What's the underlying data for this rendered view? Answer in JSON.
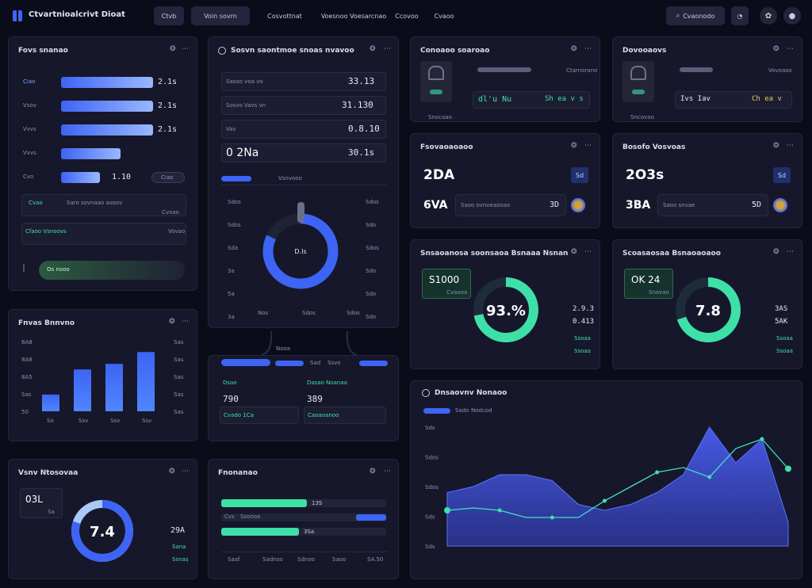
{
  "header": {
    "title": "Ctvartnioalcrivt Dioat",
    "nav": [
      "Ctvb",
      "Voin sovrn",
      "Cosvottnat",
      "Voesnoo Voesarcnao",
      "Ccovoo",
      "Cvaoo"
    ],
    "search": "Cvaonodo",
    "colors": {
      "accent": "#3d64f4",
      "bg": "#0b0c1a",
      "teal": "#3ee0a8"
    }
  },
  "panel_bars": {
    "title": "Fovs snanao",
    "rows": [
      {
        "label": "Ciao",
        "value": "2.1s",
        "fill": 1.0
      },
      {
        "label": "Vsov",
        "value": "2.1s",
        "fill": 1.0
      },
      {
        "label": "Vvvs",
        "value": "2.1s",
        "fill": 1.0
      },
      {
        "label": "Vvvs",
        "value": "",
        "fill": 0.65
      },
      {
        "label": "Cvo",
        "value": "1.10",
        "fill": 0.42
      }
    ],
    "badge": "Ciao",
    "list": [
      {
        "a": "Cvao",
        "b": "Saro sovnaao asoov",
        "c": "Cvoao"
      },
      {
        "a": "Cfaoo Vsnoovs",
        "b": "",
        "c": "Vovao"
      }
    ],
    "cta": "Os nooo"
  },
  "panel_vol": {
    "title": "Sosvn saontmoe snoas nvavoo",
    "rows": [
      {
        "label": "Sasoo voa vo",
        "value": "33.13"
      },
      {
        "label": "Sosvo Vavs vn",
        "value": "31.130"
      },
      {
        "label": "Vav",
        "value": "0.8.10"
      },
      {
        "label": "0 2Na",
        "value": "30.1s"
      }
    ],
    "tab_label": "Vsnvooo",
    "donut_value": "D.Is",
    "donut_fraction": 0.82,
    "left_ticks": [
      "Sdos",
      "Sdos",
      "Sda",
      "3a",
      "5a",
      "3a",
      "3a"
    ],
    "right_ticks": [
      "Sdos",
      "Sdo",
      "Sdos",
      "Sdo",
      "Sdo",
      "Sdo",
      "Sdo"
    ],
    "bottom_ticks": [
      "Nos",
      "Sdos",
      "Sdos"
    ]
  },
  "panel_kpi1": {
    "title": "Conoaoo soaroao",
    "sub": "Ctarnorano",
    "a": "dl'u Nu",
    "b": "Sh ea v s",
    "c": "Snocaao"
  },
  "panel_kpi2": {
    "title": "Dovooaovs",
    "sub": "Vovoaoo",
    "a": "Ivs Iav",
    "b": "Ch ea v",
    "c": "Sncovao"
  },
  "panel_stat1": {
    "title": "Fsovaoaoaoo",
    "value1": "2DA",
    "value2": "6VA",
    "badge1": "Sd",
    "note": "Saoo ovnveaooao",
    "amount": "3D"
  },
  "panel_stat2": {
    "title": "Bosofo Vosvoas",
    "value1": "2O3s",
    "value2": "3BA",
    "badge1": "Sd",
    "note": "Saoo snvae",
    "amount": "5D"
  },
  "panel_ring1": {
    "title": "Snsaoanosa soonsaoa Bsnaaa Nsnan",
    "box_value": "S1000",
    "box_label": "Cvaooa",
    "ring_value": "93.%",
    "ring_fraction": 0.72,
    "side": [
      "2.9.3",
      "0.413"
    ],
    "side_labels": [
      "Ssoaa",
      "Ssoaa"
    ]
  },
  "panel_ring2": {
    "title": "Scoasaosaa Bsnaoaoaoo",
    "box_value": "OK 24",
    "box_label": "Snovao",
    "ring_value": "7.8",
    "ring_fraction": 0.7,
    "side": [
      "3AS",
      "5AK"
    ],
    "side_labels": [
      "Ssoaa",
      "Ssoaa"
    ]
  },
  "panel_small_bars": {
    "title": "Fnvas Bnnvno",
    "y_ticks": [
      "8A8",
      "8A8",
      "8A5",
      "Sas",
      "50"
    ],
    "right_ticks": [
      "Sas",
      "Sas",
      "Sas",
      "Sas",
      "Sas"
    ],
    "x_ticks": [
      "So",
      "Ssv",
      "Ssv",
      "Ssv"
    ],
    "values": [
      0.24,
      0.6,
      0.68,
      0.85
    ]
  },
  "panel_mid_cards": {
    "tab_labels": [
      "Voasoa",
      "Nooa"
    ],
    "card1": {
      "label": "Dsao",
      "value": "790",
      "foot": "Cvado 1Ca"
    },
    "card2": {
      "label": "Dasao Noanaa",
      "value": "389",
      "foot": "Caoaoanoo"
    },
    "legend": [
      "Sad",
      "Ssvo"
    ]
  },
  "panel_dial": {
    "title": "Vsnv Ntosovaa",
    "box": "03L",
    "box_sub": "Sa",
    "ring_value": "7.4",
    "ring_fraction": 0.8,
    "side": "29A",
    "side_labels": [
      "Sana",
      "Ssnas"
    ]
  },
  "panel_progress": {
    "title": "Fnonanao",
    "rows": [
      {
        "label": "",
        "value": "13S",
        "fill": 0.5,
        "color": "#3ee0a8"
      },
      {
        "label": "Cvs",
        "value": "Ssonoo",
        "fill": 1.0,
        "color": "#3d64f4"
      },
      {
        "label": "",
        "value": "3Sa",
        "fill": 0.45,
        "color": "#3ee0a8"
      }
    ],
    "foot": [
      "Saaf",
      "Sadnos",
      "Sdnoo",
      "Saoo",
      "SA.50"
    ]
  },
  "panel_area": {
    "title": "Dnsaovnv Nonaoo",
    "legend": [
      "Sado",
      "Nodcod"
    ],
    "y_ticks": [
      "Sds",
      "Sdos",
      "Sdos",
      "Sds",
      "Sds"
    ],
    "chart_data": {
      "type": "area",
      "series": [
        {
          "name": "",
          "values": [
            0.45,
            0.5,
            0.6,
            0.6,
            0.55,
            0.35,
            0.3,
            0.35,
            0.45,
            0.6,
            1.0,
            0.7,
            0.9,
            0.2
          ]
        },
        {
          "name": "",
          "values": [
            0.3,
            0.32,
            0.3,
            0.24,
            0.24,
            0.24,
            0.38,
            0.5,
            0.62,
            0.66,
            0.58,
            0.82,
            0.9,
            0.65
          ]
        }
      ]
    }
  }
}
